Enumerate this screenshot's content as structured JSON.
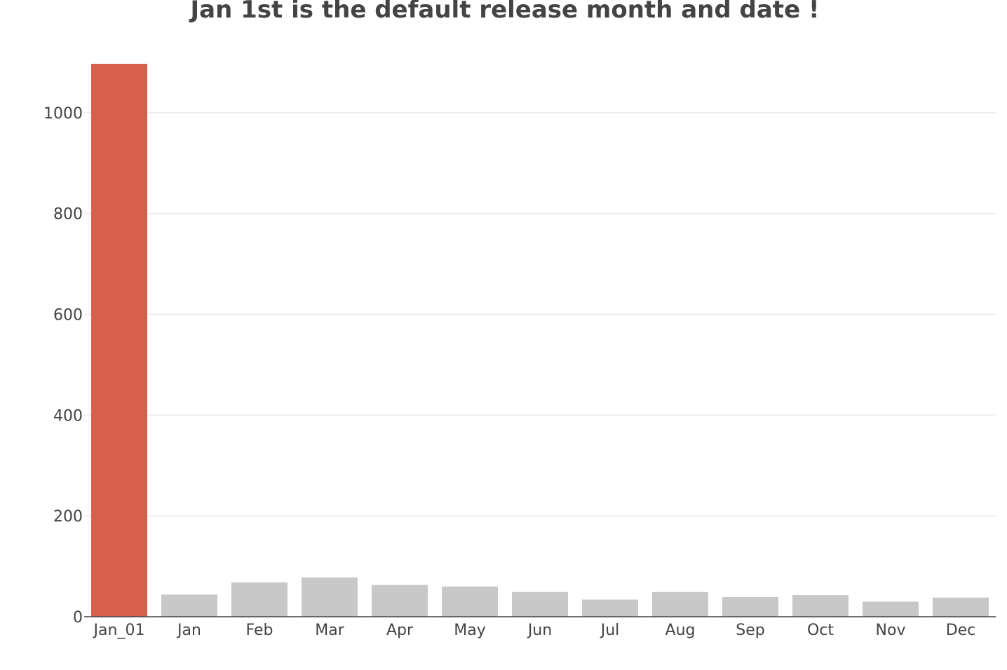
{
  "chart_data": {
    "type": "bar",
    "title": "Jan 1st is the default release month and date !",
    "xlabel": "",
    "ylabel": "",
    "categories": [
      "Jan_01",
      "Jan",
      "Feb",
      "Mar",
      "Apr",
      "May",
      "Jun",
      "Jul",
      "Aug",
      "Sep",
      "Oct",
      "Nov",
      "Dec"
    ],
    "values": [
      1097,
      44,
      68,
      78,
      63,
      60,
      49,
      34,
      49,
      39,
      43,
      30,
      38
    ],
    "ylim": [
      0,
      1097
    ],
    "yticks": [
      0,
      200,
      400,
      600,
      800,
      1000
    ],
    "grid": true,
    "legend": "none",
    "colors": {
      "highlight": "#d6604d",
      "default": "#c8c8c8",
      "text": "#444444",
      "grid": "#ebebeb"
    }
  }
}
